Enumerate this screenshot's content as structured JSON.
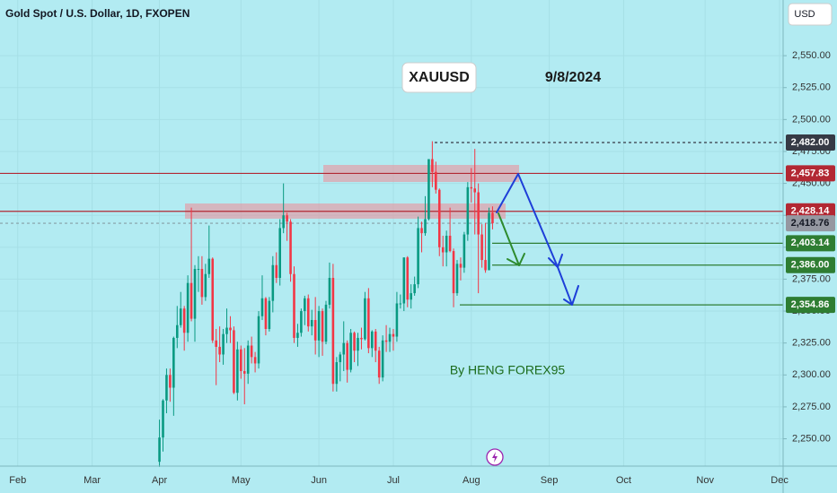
{
  "chart_data": {
    "type": "candlestick",
    "title": "Gold Spot / U.S. Dollar, 1D, FXOPEN",
    "currency": "USD",
    "annotations": [
      "XAUUSD",
      "9/8/2024",
      "By HENG FOREX95"
    ],
    "up_color": "#089981",
    "down_color": "#f23645",
    "xlim": [
      -45,
      176
    ],
    "xticks": [
      {
        "value": -40,
        "label": "Feb"
      },
      {
        "value": -19,
        "label": "Mar"
      },
      {
        "value": 0,
        "label": "Apr"
      },
      {
        "value": 23,
        "label": "May"
      },
      {
        "value": 45,
        "label": "Jun"
      },
      {
        "value": 66,
        "label": "Jul"
      },
      {
        "value": 88,
        "label": "Aug"
      },
      {
        "value": 110,
        "label": "Sep"
      },
      {
        "value": 131,
        "label": "Oct"
      },
      {
        "value": 154,
        "label": "Nov"
      },
      {
        "value": 175,
        "label": "Dec"
      }
    ],
    "ylim": [
      2228.6,
      2593.6
    ],
    "yticks": [
      {
        "value": 2250,
        "label": "2,250.00"
      },
      {
        "value": 2275,
        "label": "2,275.00"
      },
      {
        "value": 2300,
        "label": "2,300.00"
      },
      {
        "value": 2325,
        "label": "2,325.00"
      },
      {
        "value": 2350,
        "label": "2,350.00"
      },
      {
        "value": 2375,
        "label": "2,375.00"
      },
      {
        "value": 2400,
        "label": "2,400.00"
      },
      {
        "value": 2425,
        "label": "2,425.00"
      },
      {
        "value": 2450,
        "label": "2,450.00"
      },
      {
        "value": 2475,
        "label": "2,475.00"
      },
      {
        "value": 2500,
        "label": "2,500.00"
      },
      {
        "value": 2525,
        "label": "2,525.00"
      },
      {
        "value": 2550,
        "label": "2,550.00"
      }
    ],
    "levels": [
      {
        "value": 2482,
        "label": "2,482.00",
        "color": "#363a45"
      },
      {
        "value": 2457.83,
        "label": "2,457.83",
        "color": "#b22833"
      },
      {
        "value": 2428.14,
        "label": "2,428.14",
        "color": "#b22833"
      },
      {
        "value": 2418.76,
        "label": "2,418.76",
        "color": "#9598a1"
      },
      {
        "value": 2403.14,
        "label": "2,403.14",
        "color": "#2e7d32"
      },
      {
        "value": 2386,
        "label": "2,386.00",
        "color": "#2e7d32"
      },
      {
        "value": 2354.86,
        "label": "2,354.86",
        "color": "#2e7d32"
      }
    ],
    "ohlc": [
      [
        2232,
        2265,
        2228,
        2251
      ],
      [
        2251,
        2281,
        2240,
        2280
      ],
      [
        2280,
        2305,
        2270,
        2300
      ],
      [
        2300,
        2305,
        2279,
        2290
      ],
      [
        2290,
        2330,
        2268,
        2329
      ],
      [
        2329,
        2354,
        2321,
        2339
      ],
      [
        2339,
        2365,
        2337,
        2352
      ],
      [
        2352,
        2354,
        2319,
        2333
      ],
      [
        2333,
        2378,
        2326,
        2372
      ],
      [
        2372,
        2431,
        2342,
        2344
      ],
      [
        2344,
        2386,
        2326,
        2383
      ],
      [
        2383,
        2393,
        2365,
        2383
      ],
      [
        2383,
        2393,
        2355,
        2361
      ],
      [
        2361,
        2387,
        2358,
        2379
      ],
      [
        2379,
        2417,
        2376,
        2391
      ],
      [
        2391,
        2392,
        2325,
        2327
      ],
      [
        2327,
        2336,
        2292,
        2322
      ],
      [
        2322,
        2338,
        2310,
        2316
      ],
      [
        2316,
        2336,
        2308,
        2332
      ],
      [
        2332,
        2352,
        2325,
        2337
      ],
      [
        2337,
        2346,
        2325,
        2335
      ],
      [
        2335,
        2338,
        2285,
        2286
      ],
      [
        2286,
        2326,
        2280,
        2320
      ],
      [
        2320,
        2323,
        2297,
        2303
      ],
      [
        2303,
        2321,
        2277,
        2301
      ],
      [
        2301,
        2327,
        2293,
        2323
      ],
      [
        2323,
        2330,
        2309,
        2314
      ],
      [
        2314,
        2318,
        2302,
        2309
      ],
      [
        2309,
        2350,
        2305,
        2346
      ],
      [
        2346,
        2378,
        2343,
        2360
      ],
      [
        2360,
        2361,
        2331,
        2336
      ],
      [
        2336,
        2361,
        2334,
        2358
      ],
      [
        2358,
        2393,
        2349,
        2386
      ],
      [
        2386,
        2396,
        2372,
        2376
      ],
      [
        2376,
        2422,
        2370,
        2415
      ],
      [
        2415,
        2450,
        2411,
        2425
      ],
      [
        2425,
        2427,
        2405,
        2420
      ],
      [
        2420,
        2422,
        2373,
        2379
      ],
      [
        2379,
        2385,
        2325,
        2329
      ],
      [
        2329,
        2340,
        2322,
        2333
      ],
      [
        2333,
        2352,
        2330,
        2350
      ],
      [
        2350,
        2362,
        2339,
        2360
      ],
      [
        2360,
        2363,
        2334,
        2338
      ],
      [
        2338,
        2351,
        2331,
        2343
      ],
      [
        2343,
        2361,
        2316,
        2327
      ],
      [
        2327,
        2354,
        2314,
        2350
      ],
      [
        2350,
        2352,
        2315,
        2326
      ],
      [
        2326,
        2358,
        2324,
        2355
      ],
      [
        2355,
        2388,
        2352,
        2376
      ],
      [
        2376,
        2387,
        2287,
        2293
      ],
      [
        2293,
        2314,
        2287,
        2310
      ],
      [
        2310,
        2318,
        2295,
        2316
      ],
      [
        2316,
        2342,
        2303,
        2325
      ],
      [
        2325,
        2327,
        2294,
        2304
      ],
      [
        2304,
        2336,
        2302,
        2333
      ],
      [
        2333,
        2334,
        2310,
        2319
      ],
      [
        2319,
        2333,
        2307,
        2329
      ],
      [
        2329,
        2337,
        2320,
        2328
      ],
      [
        2328,
        2365,
        2327,
        2360
      ],
      [
        2360,
        2368,
        2317,
        2321
      ],
      [
        2321,
        2335,
        2314,
        2334
      ],
      [
        2334,
        2336,
        2310,
        2319
      ],
      [
        2319,
        2322,
        2293,
        2298
      ],
      [
        2298,
        2331,
        2295,
        2327
      ],
      [
        2327,
        2339,
        2318,
        2326
      ],
      [
        2326,
        2337,
        2318,
        2332
      ],
      [
        2332,
        2336,
        2319,
        2330
      ],
      [
        2330,
        2365,
        2326,
        2356
      ],
      [
        2356,
        2363,
        2352,
        2356
      ],
      [
        2356,
        2392,
        2350,
        2392
      ],
      [
        2392,
        2393,
        2353,
        2359
      ],
      [
        2359,
        2371,
        2352,
        2364
      ],
      [
        2364,
        2377,
        2362,
        2371
      ],
      [
        2371,
        2424,
        2368,
        2415
      ],
      [
        2415,
        2420,
        2396,
        2411
      ],
      [
        2411,
        2440,
        2409,
        2422
      ],
      [
        2422,
        2469,
        2421,
        2469
      ],
      [
        2469,
        2483,
        2447,
        2459
      ],
      [
        2459,
        2467,
        2442,
        2445
      ],
      [
        2445,
        2446,
        2393,
        2400
      ],
      [
        2400,
        2409,
        2385,
        2396
      ],
      [
        2396,
        2413,
        2385,
        2409
      ],
      [
        2409,
        2431,
        2396,
        2397
      ],
      [
        2397,
        2399,
        2353,
        2364
      ],
      [
        2364,
        2390,
        2362,
        2387
      ],
      [
        2387,
        2392,
        2374,
        2384
      ],
      [
        2384,
        2412,
        2380,
        2410
      ],
      [
        2410,
        2451,
        2405,
        2447
      ],
      [
        2447,
        2462,
        2435,
        2446
      ],
      [
        2446,
        2477,
        2410,
        2443
      ],
      [
        2443,
        2450,
        2364,
        2410
      ],
      [
        2410,
        2418,
        2384,
        2390
      ],
      [
        2390,
        2419,
        2380,
        2382
      ],
      [
        2382,
        2431,
        2382,
        2427
      ],
      [
        2427,
        2432,
        2414,
        2418.76
      ]
    ]
  }
}
